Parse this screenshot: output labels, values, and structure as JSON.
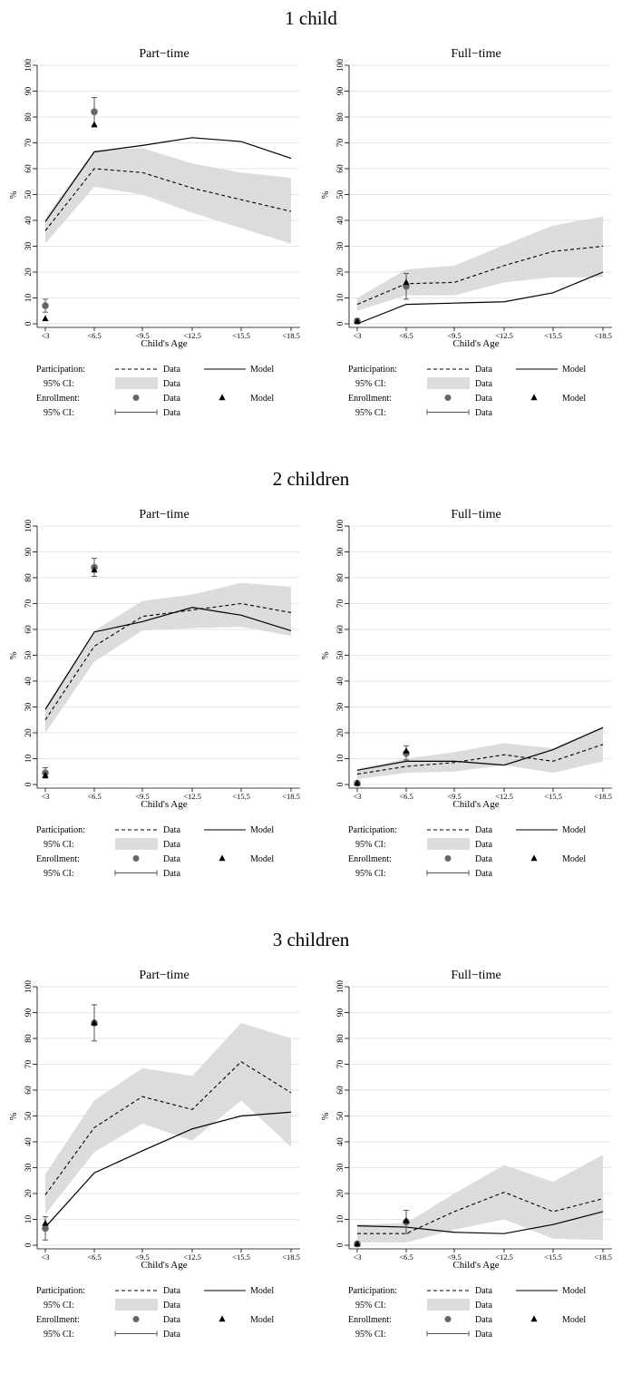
{
  "chart_data": {
    "type": "line",
    "x_categories": [
      "<3",
      "<6.5",
      "<9.5",
      "<12.5",
      "<15.5",
      "<18.5"
    ],
    "xlabel": "Child's Age",
    "ylabel": "%",
    "ylim": [
      0,
      100
    ],
    "yticks": [
      0,
      10,
      20,
      30,
      40,
      50,
      60,
      70,
      80,
      90,
      100
    ],
    "legend": {
      "participation_label": "Participation:",
      "ci_label": "95% CI:",
      "enrollment_label": "Enrollment:",
      "data_label": "Data",
      "model_label": "Model"
    },
    "groups": [
      {
        "title": "1 child",
        "panels": [
          {
            "title": "Part−time",
            "participation_data": [
              36,
              60,
              58.5,
              52.5,
              48,
              43.5
            ],
            "participation_model": [
              39.5,
              66.5,
              69,
              72,
              70.5,
              64
            ],
            "ci_lower": [
              31,
              53,
              50,
              43,
              37,
              31
            ],
            "ci_upper": [
              41,
              67,
              68,
              62,
              58.5,
              56.5
            ],
            "enrollment_data": [
              {
                "x": "<3",
                "y": 7,
                "lo": 4.5,
                "hi": 9.5
              },
              {
                "x": "<6.5",
                "y": 82,
                "lo": 76.5,
                "hi": 87.5
              }
            ],
            "enrollment_model": [
              {
                "x": "<3",
                "y": 2
              },
              {
                "x": "<6.5",
                "y": 77
              }
            ]
          },
          {
            "title": "Full−time",
            "participation_data": [
              7.5,
              15.5,
              16,
              22.5,
              28,
              30
            ],
            "participation_model": [
              0,
              7.5,
              8,
              8.5,
              12,
              20
            ],
            "ci_lower": [
              5,
              11,
              11,
              16,
              18,
              18
            ],
            "ci_upper": [
              10,
              21,
              22.5,
              30.5,
              38,
              41.5
            ],
            "enrollment_data": [
              {
                "x": "<3",
                "y": 1,
                "lo": 0,
                "hi": 2
              },
              {
                "x": "<6.5",
                "y": 14.5,
                "lo": 9.5,
                "hi": 19.5
              }
            ],
            "enrollment_model": [
              {
                "x": "<3",
                "y": 1
              },
              {
                "x": "<6.5",
                "y": 16
              }
            ]
          }
        ]
      },
      {
        "title": "2 children",
        "panels": [
          {
            "title": "Part−time",
            "participation_data": [
              25,
              53.5,
              65,
              67.5,
              70,
              66.5
            ],
            "participation_model": [
              29,
              59,
              63,
              68.5,
              65.5,
              59.5
            ],
            "ci_lower": [
              20,
              47.5,
              59.5,
              60.5,
              61,
              57.5
            ],
            "ci_upper": [
              30,
              59.5,
              71,
              73.5,
              78,
              76.5
            ],
            "enrollment_data": [
              {
                "x": "<3",
                "y": 4.5,
                "lo": 2.5,
                "hi": 6.5
              },
              {
                "x": "<6.5",
                "y": 84,
                "lo": 80.5,
                "hi": 87.5
              }
            ],
            "enrollment_model": [
              {
                "x": "<3",
                "y": 3.5
              },
              {
                "x": "<6.5",
                "y": 83
              }
            ]
          },
          {
            "title": "Full−time",
            "participation_data": [
              4,
              7,
              8.5,
              11.5,
              9,
              15.5
            ],
            "participation_model": [
              5.5,
              9,
              9,
              7.5,
              13.5,
              22
            ],
            "ci_lower": [
              2,
              4.5,
              5,
              7.5,
              4.5,
              9
            ],
            "ci_upper": [
              6,
              10,
              12.5,
              16,
              14,
              22.5
            ],
            "enrollment_data": [
              {
                "x": "<3",
                "y": 0.5,
                "lo": 0,
                "hi": 1
              },
              {
                "x": "<6.5",
                "y": 12,
                "lo": 9.5,
                "hi": 15
              }
            ],
            "enrollment_model": [
              {
                "x": "<3",
                "y": 0.5
              },
              {
                "x": "<6.5",
                "y": 13
              }
            ]
          }
        ]
      },
      {
        "title": "3 children",
        "panels": [
          {
            "title": "Part−time",
            "participation_data": [
              19.5,
              45.5,
              57.5,
              52.5,
              71,
              59
            ],
            "participation_model": [
              7,
              28,
              36.5,
              45,
              50,
              51.5
            ],
            "ci_lower": [
              12,
              36,
              47,
              40.5,
              56,
              38
            ],
            "ci_upper": [
              27.5,
              56,
              68.5,
              65.5,
              86,
              80
            ],
            "enrollment_data": [
              {
                "x": "<3",
                "y": 6.5,
                "lo": 2,
                "hi": 11
              },
              {
                "x": "<6.5",
                "y": 86,
                "lo": 79,
                "hi": 93
              }
            ],
            "enrollment_model": [
              {
                "x": "<3",
                "y": 8.5
              },
              {
                "x": "<6.5",
                "y": 86
              }
            ]
          },
          {
            "title": "Full−time",
            "participation_data": [
              4.5,
              4.5,
              13,
              20.5,
              13,
              18
            ],
            "participation_model": [
              7.5,
              7,
              5,
              4.5,
              8,
              13
            ],
            "ci_lower": [
              1,
              1,
              6,
              10,
              2.5,
              2
            ],
            "ci_upper": [
              8,
              8.5,
              20,
              31,
              24.5,
              35
            ],
            "enrollment_data": [
              {
                "x": "<3",
                "y": 0.5,
                "lo": 0,
                "hi": 1
              },
              {
                "x": "<6.5",
                "y": 9,
                "lo": 4.5,
                "hi": 13.5
              }
            ],
            "enrollment_model": [
              {
                "x": "<3",
                "y": 0.5
              },
              {
                "x": "<6.5",
                "y": 9.5
              }
            ]
          }
        ]
      }
    ]
  }
}
